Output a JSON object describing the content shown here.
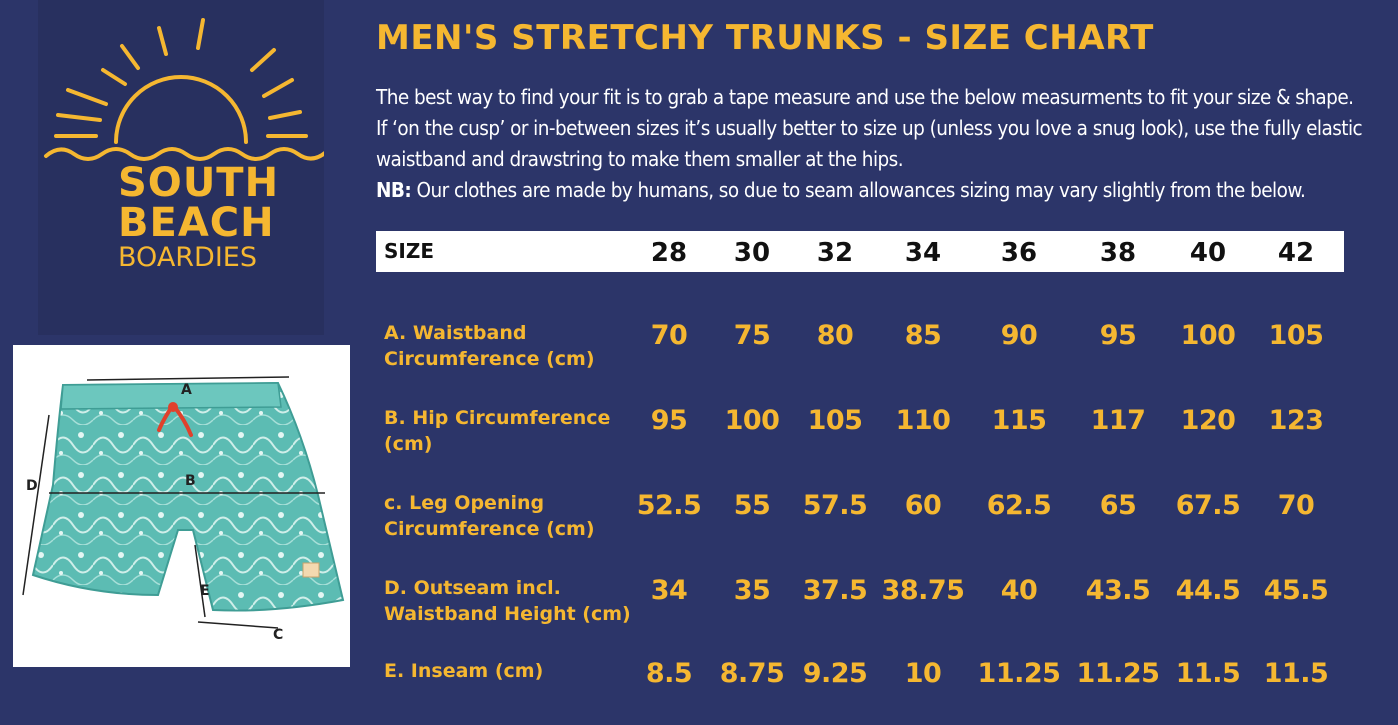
{
  "brand": {
    "line1": "SOUTH",
    "line2": "BEACH",
    "line3": "BOARDIES",
    "logo_icon": "sunrise-over-waves-icon",
    "accent_color": "#f5b731"
  },
  "title": "MEN'S STRETCHY TRUNKS - SIZE CHART",
  "description": {
    "line1": "The best way to find your fit is to grab a tape measure and use the below measurments to fit your size & shape.",
    "line2": "If ‘on the cusp’ or in-between sizes it’s usually better to size up (unless you love a snug look), use the fully elastic",
    "line3": "waistband and drawstring to make them smaller at the hips.",
    "nb_label": "NB:",
    "nb_text": " Our clothes are made by humans, so due to seam allowances sizing may vary slightly from the below."
  },
  "table": {
    "header_label": "SIZE",
    "sizes": [
      "28",
      "30",
      "32",
      "34",
      "36",
      "38",
      "40",
      "42"
    ],
    "rows": [
      {
        "label_line1": "A. Waistband",
        "label_line2": "Circumference (cm)",
        "values": [
          "70",
          "75",
          "80",
          "85",
          "90",
          "95",
          "100",
          "105"
        ]
      },
      {
        "label_line1": "B. Hip Circumference",
        "label_line2": "(cm)",
        "values": [
          "95",
          "100",
          "105",
          "110",
          "115",
          "117",
          "120",
          "123"
        ]
      },
      {
        "label_line1": "c. Leg Opening",
        "label_line2": "Circumference (cm)",
        "values": [
          "52.5",
          "55",
          "57.5",
          "60",
          "62.5",
          "65",
          "67.5",
          "70"
        ]
      },
      {
        "label_line1": "D. Outseam incl.",
        "label_line2": "Waistband Height (cm)",
        "values": [
          "34",
          "35",
          "37.5",
          "38.75",
          "40",
          "43.5",
          "44.5",
          "45.5"
        ]
      },
      {
        "label_line1": "E. Inseam (cm)",
        "label_line2": "",
        "values": [
          "8.5",
          "8.75",
          "9.25",
          "10",
          "11.25",
          "11.25",
          "11.5",
          "11.5"
        ]
      }
    ]
  },
  "diagram": {
    "labels": {
      "a": "A",
      "b": "B",
      "c": "C",
      "d": "D",
      "e": "E"
    },
    "image_icon": "trunks-measurement-photo-icon"
  }
}
